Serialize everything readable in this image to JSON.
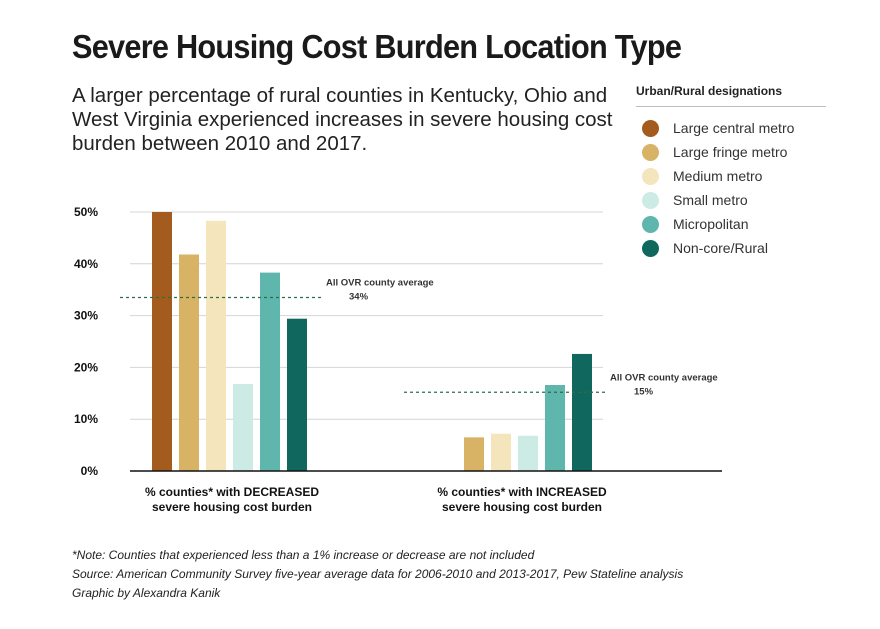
{
  "title": "Severe Housing Cost Burden Location Type",
  "subtitle": "A larger percentage of rural counties in Kentucky, Ohio and West Virginia experienced increases in severe housing cost burden between 2010 and 2017.",
  "legend": {
    "title": "Urban/Rural designations",
    "items": [
      {
        "label": "Large central metro",
        "color": "#a35c1d"
      },
      {
        "label": "Large fringe metro",
        "color": "#d8b366"
      },
      {
        "label": "Medium metro",
        "color": "#f5e5bd"
      },
      {
        "label": "Small metro",
        "color": "#cdebe5"
      },
      {
        "label": "Micropolitan",
        "color": "#5fb6ac"
      },
      {
        "label": "Non-core/Rural",
        "color": "#0f675e"
      }
    ]
  },
  "chart_data": {
    "type": "bar",
    "categories": [
      [
        "% counties* with DECREASED",
        "severe housing cost burden"
      ],
      [
        "% counties* with INCREASED",
        "severe housing cost burden"
      ]
    ],
    "series": [
      {
        "name": "Large central metro",
        "values": [
          50,
          null
        ]
      },
      {
        "name": "Large fringe metro",
        "values": [
          41.8,
          6.5
        ]
      },
      {
        "name": "Medium metro",
        "values": [
          48.3,
          7.2
        ]
      },
      {
        "name": "Small metro",
        "values": [
          16.8,
          6.8
        ]
      },
      {
        "name": "Micropolitan",
        "values": [
          38.3,
          16.6
        ]
      },
      {
        "name": "Non-core/Rural",
        "values": [
          29.4,
          22.6
        ]
      }
    ],
    "ylim": [
      0,
      50
    ],
    "yticks": [
      0,
      10,
      20,
      30,
      40,
      50
    ],
    "ytick_labels": [
      "0%",
      "10%",
      "20%",
      "30%",
      "40%",
      "50%"
    ],
    "grid": true,
    "averages": [
      {
        "group": 0,
        "value": 33.5,
        "label": "All OVR county average",
        "value_label": "34%"
      },
      {
        "group": 1,
        "value": 15.2,
        "label": "All OVR county average",
        "value_label": "15%"
      }
    ]
  },
  "notes": [
    "*Note: Counties that experienced less than a 1% increase or decrease are not included",
    "Source: American Community Survey five-year average data for 2006-2010 and 2013-2017, Pew Stateline analysis",
    "Graphic by Alexandra Kanik"
  ]
}
